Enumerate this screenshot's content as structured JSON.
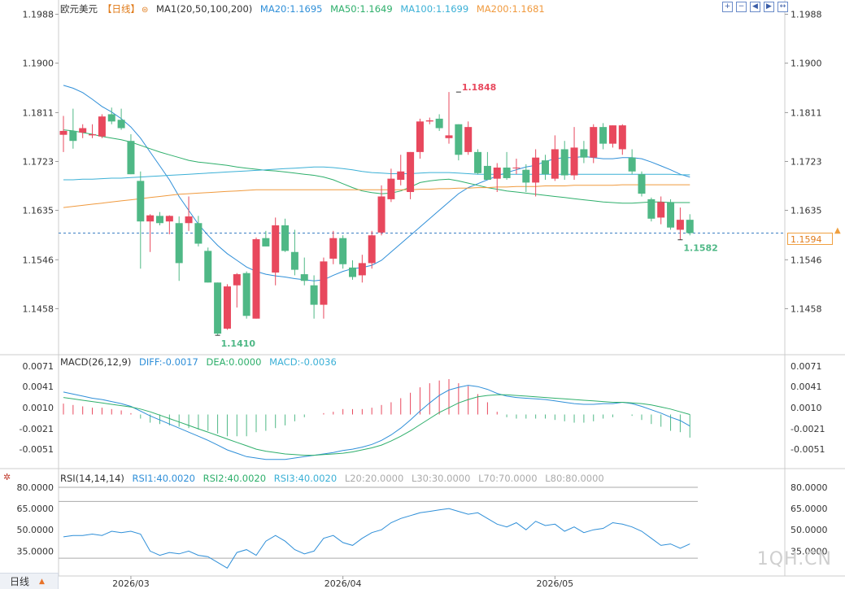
{
  "symbol": "欧元美元",
  "period_tag": "【日线】",
  "ma_legend": {
    "name": "MA1(20,50,100,200)",
    "items": [
      {
        "label": "MA20:1.1695",
        "color": "#2f8fd8"
      },
      {
        "label": "MA50:1.1649",
        "color": "#2eaf6b"
      },
      {
        "label": "MA100:1.1699",
        "color": "#3bb0d6"
      },
      {
        "label": "MA200:1.1681",
        "color": "#f09a3e"
      }
    ]
  },
  "macd_legend": {
    "name": "MACD(26,12,9)",
    "items": [
      {
        "label": "DIFF:-0.0017",
        "color": "#2f8fd8"
      },
      {
        "label": "DEA:0.0000",
        "color": "#2eaf6b"
      },
      {
        "label": "MACD:-0.0036",
        "color": "#3bb0d6"
      }
    ]
  },
  "rsi_legend": {
    "name": "RSI(14,14,14)",
    "items": [
      {
        "label": "RSI1:40.0020",
        "color": "#2f8fd8"
      },
      {
        "label": "RSI2:40.0020",
        "color": "#2eaf6b"
      },
      {
        "label": "RSI3:40.0020",
        "color": "#3bb0d6"
      },
      {
        "label": "L20:20.0000",
        "color": "#aaaaaa"
      },
      {
        "label": "L30:30.0000",
        "color": "#aaaaaa"
      },
      {
        "label": "L70:70.0000",
        "color": "#aaaaaa"
      },
      {
        "label": "L80:80.0000",
        "color": "#aaaaaa"
      }
    ]
  },
  "toolbar_icons": [
    "zoom-in-icon",
    "zoom-out-icon",
    "move-left-icon",
    "move-right-icon",
    "reset-icon"
  ],
  "toolbar_glyphs": [
    "+",
    "−",
    "◀",
    "▶",
    "↔"
  ],
  "period_button": "日线",
  "watermark": "1QH.CN",
  "current_price": "1.1594",
  "colors": {
    "up": "#e8485d",
    "down": "#4fb886",
    "grid": "#e6e6e6"
  },
  "chart_data": {
    "type": "candlestick",
    "x_labels": [
      {
        "index": 7,
        "text": "2026/03"
      },
      {
        "index": 29,
        "text": "2026/04"
      },
      {
        "index": 51,
        "text": "2026/05"
      }
    ],
    "price_axis": {
      "ticks": [
        "1.1988",
        "1.1900",
        "1.1811",
        "1.1723",
        "1.1635",
        "1.1546",
        "1.1458"
      ],
      "ylim": [
        1.1378,
        1.2002
      ]
    },
    "annotations": [
      {
        "text": "1.1848",
        "index": 41,
        "value": 1.1848,
        "type": "high"
      },
      {
        "text": "1.1410",
        "index": 16,
        "value": 1.141,
        "type": "low"
      },
      {
        "text": "1.1582",
        "index": 64,
        "value": 1.1582,
        "type": "low"
      }
    ],
    "last_price_line": 1.1594,
    "candles": [
      {
        "o": 1.1771,
        "h": 1.1805,
        "l": 1.174,
        "c": 1.1778
      },
      {
        "o": 1.1778,
        "h": 1.1818,
        "l": 1.1746,
        "c": 1.176
      },
      {
        "o": 1.1775,
        "h": 1.179,
        "l": 1.1765,
        "c": 1.1783
      },
      {
        "o": 1.177,
        "h": 1.179,
        "l": 1.1765,
        "c": 1.1772
      },
      {
        "o": 1.1768,
        "h": 1.1808,
        "l": 1.1765,
        "c": 1.1804
      },
      {
        "o": 1.1808,
        "h": 1.182,
        "l": 1.179,
        "c": 1.1795
      },
      {
        "o": 1.1798,
        "h": 1.1818,
        "l": 1.178,
        "c": 1.1783
      },
      {
        "o": 1.176,
        "h": 1.1772,
        "l": 1.17,
        "c": 1.17
      },
      {
        "o": 1.1688,
        "h": 1.1705,
        "l": 1.153,
        "c": 1.1615
      },
      {
        "o": 1.1615,
        "h": 1.1628,
        "l": 1.156,
        "c": 1.1626
      },
      {
        "o": 1.1625,
        "h": 1.1632,
        "l": 1.1608,
        "c": 1.1612
      },
      {
        "o": 1.1615,
        "h": 1.1626,
        "l": 1.1592,
        "c": 1.1625
      },
      {
        "o": 1.1612,
        "h": 1.1624,
        "l": 1.1508,
        "c": 1.154
      },
      {
        "o": 1.1612,
        "h": 1.166,
        "l": 1.1598,
        "c": 1.1624
      },
      {
        "o": 1.1612,
        "h": 1.1625,
        "l": 1.157,
        "c": 1.1575
      },
      {
        "o": 1.1562,
        "h": 1.1568,
        "l": 1.1505,
        "c": 1.1505
      },
      {
        "o": 1.1505,
        "h": 1.1505,
        "l": 1.141,
        "c": 1.1413
      },
      {
        "o": 1.1422,
        "h": 1.1502,
        "l": 1.142,
        "c": 1.1498
      },
      {
        "o": 1.15,
        "h": 1.1522,
        "l": 1.146,
        "c": 1.152
      },
      {
        "o": 1.1522,
        "h": 1.1525,
        "l": 1.144,
        "c": 1.1445
      },
      {
        "o": 1.144,
        "h": 1.1586,
        "l": 1.144,
        "c": 1.1583
      },
      {
        "o": 1.1585,
        "h": 1.1598,
        "l": 1.157,
        "c": 1.157
      },
      {
        "o": 1.1523,
        "h": 1.1622,
        "l": 1.15,
        "c": 1.1608
      },
      {
        "o": 1.1608,
        "h": 1.162,
        "l": 1.156,
        "c": 1.1562
      },
      {
        "o": 1.156,
        "h": 1.16,
        "l": 1.1518,
        "c": 1.1528
      },
      {
        "o": 1.152,
        "h": 1.155,
        "l": 1.15,
        "c": 1.1508
      },
      {
        "o": 1.15,
        "h": 1.1518,
        "l": 1.144,
        "c": 1.1465
      },
      {
        "o": 1.1465,
        "h": 1.155,
        "l": 1.144,
        "c": 1.1543
      },
      {
        "o": 1.1548,
        "h": 1.1598,
        "l": 1.1538,
        "c": 1.1585
      },
      {
        "o": 1.1585,
        "h": 1.159,
        "l": 1.153,
        "c": 1.1538
      },
      {
        "o": 1.1532,
        "h": 1.1545,
        "l": 1.151,
        "c": 1.1515
      },
      {
        "o": 1.1518,
        "h": 1.1555,
        "l": 1.1505,
        "c": 1.154
      },
      {
        "o": 1.154,
        "h": 1.1598,
        "l": 1.153,
        "c": 1.159
      },
      {
        "o": 1.1595,
        "h": 1.168,
        "l": 1.159,
        "c": 1.166
      },
      {
        "o": 1.1655,
        "h": 1.171,
        "l": 1.165,
        "c": 1.1692
      },
      {
        "o": 1.169,
        "h": 1.1735,
        "l": 1.168,
        "c": 1.1705
      },
      {
        "o": 1.1668,
        "h": 1.174,
        "l": 1.1655,
        "c": 1.174
      },
      {
        "o": 1.174,
        "h": 1.18,
        "l": 1.1728,
        "c": 1.1795
      },
      {
        "o": 1.1795,
        "h": 1.1802,
        "l": 1.179,
        "c": 1.1797
      },
      {
        "o": 1.18,
        "h": 1.1808,
        "l": 1.1778,
        "c": 1.1783
      },
      {
        "o": 1.1765,
        "h": 1.1848,
        "l": 1.1755,
        "c": 1.177
      },
      {
        "o": 1.179,
        "h": 1.179,
        "l": 1.1725,
        "c": 1.1735
      },
      {
        "o": 1.174,
        "h": 1.1795,
        "l": 1.1735,
        "c": 1.1785
      },
      {
        "o": 1.174,
        "h": 1.1745,
        "l": 1.17,
        "c": 1.1702
      },
      {
        "o": 1.1715,
        "h": 1.174,
        "l": 1.169,
        "c": 1.169
      },
      {
        "o": 1.1692,
        "h": 1.172,
        "l": 1.1668,
        "c": 1.1712
      },
      {
        "o": 1.1712,
        "h": 1.174,
        "l": 1.169,
        "c": 1.1693
      },
      {
        "o": 1.1712,
        "h": 1.1728,
        "l": 1.17,
        "c": 1.1712
      },
      {
        "o": 1.1708,
        "h": 1.1718,
        "l": 1.1668,
        "c": 1.1685
      },
      {
        "o": 1.1685,
        "h": 1.1745,
        "l": 1.166,
        "c": 1.173
      },
      {
        "o": 1.1725,
        "h": 1.1735,
        "l": 1.169,
        "c": 1.17
      },
      {
        "o": 1.1692,
        "h": 1.177,
        "l": 1.1688,
        "c": 1.1745
      },
      {
        "o": 1.1745,
        "h": 1.176,
        "l": 1.169,
        "c": 1.1698
      },
      {
        "o": 1.1698,
        "h": 1.1785,
        "l": 1.169,
        "c": 1.1748
      },
      {
        "o": 1.1745,
        "h": 1.176,
        "l": 1.172,
        "c": 1.173
      },
      {
        "o": 1.173,
        "h": 1.179,
        "l": 1.172,
        "c": 1.1785
      },
      {
        "o": 1.1785,
        "h": 1.1792,
        "l": 1.1745,
        "c": 1.1755
      },
      {
        "o": 1.1755,
        "h": 1.1788,
        "l": 1.1748,
        "c": 1.1788
      },
      {
        "o": 1.1745,
        "h": 1.179,
        "l": 1.1735,
        "c": 1.1788
      },
      {
        "o": 1.173,
        "h": 1.1745,
        "l": 1.17,
        "c": 1.1705
      },
      {
        "o": 1.17,
        "h": 1.1705,
        "l": 1.166,
        "c": 1.1665
      },
      {
        "o": 1.1655,
        "h": 1.1658,
        "l": 1.1615,
        "c": 1.162
      },
      {
        "o": 1.1622,
        "h": 1.166,
        "l": 1.161,
        "c": 1.165
      },
      {
        "o": 1.165,
        "h": 1.1655,
        "l": 1.16,
        "c": 1.1604
      },
      {
        "o": 1.16,
        "h": 1.164,
        "l": 1.1582,
        "c": 1.1618
      },
      {
        "o": 1.1618,
        "h": 1.1628,
        "l": 1.159,
        "c": 1.1594
      }
    ],
    "ma_lines": {
      "MA20": [
        1.186,
        1.1855,
        1.1847,
        1.1835,
        1.1822,
        1.1812,
        1.18,
        1.1785,
        1.1765,
        1.174,
        1.1715,
        1.169,
        1.166,
        1.1635,
        1.161,
        1.159,
        1.1572,
        1.1557,
        1.1545,
        1.1533,
        1.1525,
        1.152,
        1.1517,
        1.1515,
        1.1512,
        1.151,
        1.1508,
        1.151,
        1.1518,
        1.1525,
        1.153,
        1.1532,
        1.1536,
        1.1545,
        1.156,
        1.1575,
        1.159,
        1.1605,
        1.162,
        1.1635,
        1.165,
        1.1665,
        1.1676,
        1.1683,
        1.169,
        1.1697,
        1.1703,
        1.1708,
        1.1713,
        1.1716,
        1.1723,
        1.1728,
        1.173,
        1.173,
        1.1732,
        1.173,
        1.1728,
        1.1728,
        1.173,
        1.173,
        1.1728,
        1.1722,
        1.1715,
        1.1708,
        1.17,
        1.1695
      ],
      "MA50": [
        1.178,
        1.1778,
        1.1775,
        1.1772,
        1.1768,
        1.1765,
        1.1762,
        1.1758,
        1.1752,
        1.1746,
        1.174,
        1.1735,
        1.173,
        1.1725,
        1.1722,
        1.172,
        1.1718,
        1.1716,
        1.1713,
        1.1711,
        1.1709,
        1.1707,
        1.1706,
        1.1704,
        1.1702,
        1.17,
        1.1698,
        1.1695,
        1.169,
        1.1683,
        1.1676,
        1.167,
        1.1667,
        1.1665,
        1.1666,
        1.167,
        1.1677,
        1.1685,
        1.1688,
        1.169,
        1.1691,
        1.1688,
        1.1684,
        1.168,
        1.1676,
        1.1673,
        1.167,
        1.1668,
        1.1666,
        1.1664,
        1.1662,
        1.166,
        1.1658,
        1.1656,
        1.1654,
        1.1652,
        1.165,
        1.1649,
        1.1648,
        1.1648,
        1.1649,
        1.165,
        1.165,
        1.1649,
        1.1649,
        1.1649
      ],
      "MA100": [
        1.169,
        1.169,
        1.1691,
        1.1691,
        1.1692,
        1.1693,
        1.1693,
        1.1694,
        1.1695,
        1.1696,
        1.1697,
        1.1698,
        1.1699,
        1.17,
        1.1701,
        1.1702,
        1.1703,
        1.1704,
        1.1705,
        1.1706,
        1.1707,
        1.1708,
        1.1709,
        1.171,
        1.1711,
        1.1712,
        1.1713,
        1.1713,
        1.1712,
        1.171,
        1.1708,
        1.1705,
        1.1703,
        1.1702,
        1.1701,
        1.1701,
        1.1701,
        1.1702,
        1.1703,
        1.1703,
        1.1703,
        1.1702,
        1.1701,
        1.17,
        1.17,
        1.17,
        1.17,
        1.17,
        1.17,
        1.17,
        1.17,
        1.17,
        1.17,
        1.17,
        1.17,
        1.17,
        1.17,
        1.17,
        1.17,
        1.17,
        1.17,
        1.17,
        1.17,
        1.17,
        1.1699,
        1.1699
      ],
      "MA200": [
        1.164,
        1.1642,
        1.1644,
        1.1646,
        1.1648,
        1.165,
        1.1652,
        1.1654,
        1.1656,
        1.1658,
        1.166,
        1.1662,
        1.1664,
        1.1665,
        1.1666,
        1.1667,
        1.1668,
        1.1669,
        1.167,
        1.1671,
        1.1672,
        1.1672,
        1.1672,
        1.1672,
        1.1672,
        1.1672,
        1.1672,
        1.1672,
        1.1672,
        1.1672,
        1.1672,
        1.1672,
        1.1672,
        1.1672,
        1.1672,
        1.1672,
        1.1672,
        1.1673,
        1.1673,
        1.1674,
        1.1674,
        1.1675,
        1.1675,
        1.1676,
        1.1676,
        1.1677,
        1.1677,
        1.1678,
        1.1678,
        1.1678,
        1.1679,
        1.1679,
        1.1679,
        1.168,
        1.168,
        1.168,
        1.168,
        1.168,
        1.1681,
        1.1681,
        1.1681,
        1.1681,
        1.1681,
        1.1681,
        1.1681,
        1.1681
      ]
    },
    "macd": {
      "axis_ticks": [
        "0.0071",
        "0.0041",
        "0.0010",
        "-0.0021",
        "-0.0051"
      ],
      "ylim": [
        -0.007,
        0.0076
      ],
      "diff": [
        0.0033,
        0.003,
        0.0027,
        0.0024,
        0.0022,
        0.0019,
        0.0016,
        0.0012,
        0.0005,
        -0.0002,
        -0.0008,
        -0.0014,
        -0.002,
        -0.0026,
        -0.0032,
        -0.0038,
        -0.0045,
        -0.0052,
        -0.0057,
        -0.0062,
        -0.0064,
        -0.0066,
        -0.0066,
        -0.0066,
        -0.0064,
        -0.0062,
        -0.006,
        -0.0058,
        -0.0056,
        -0.0053,
        -0.0051,
        -0.0048,
        -0.0044,
        -0.0038,
        -0.003,
        -0.002,
        -0.0008,
        0.0005,
        0.0017,
        0.0028,
        0.0036,
        0.004,
        0.0043,
        0.0041,
        0.0037,
        0.0031,
        0.0027,
        0.0025,
        0.0024,
        0.0023,
        0.0022,
        0.002,
        0.0018,
        0.0016,
        0.0015,
        0.0015,
        0.0016,
        0.0016,
        0.0018,
        0.0016,
        0.0012,
        0.0007,
        0.0002,
        -0.0004,
        -0.0009,
        -0.0017
      ],
      "dea": [
        0.0025,
        0.0023,
        0.0021,
        0.0019,
        0.0017,
        0.0015,
        0.0013,
        0.0011,
        0.0008,
        0.0004,
        -0.0001,
        -0.0006,
        -0.0011,
        -0.0016,
        -0.0021,
        -0.0026,
        -0.0031,
        -0.0036,
        -0.0041,
        -0.0046,
        -0.0051,
        -0.0054,
        -0.0056,
        -0.0058,
        -0.0059,
        -0.006,
        -0.006,
        -0.0059,
        -0.0058,
        -0.0057,
        -0.0055,
        -0.0052,
        -0.0049,
        -0.0045,
        -0.0039,
        -0.0032,
        -0.0024,
        -0.0015,
        -0.0006,
        0.0003,
        0.001,
        0.0017,
        0.0022,
        0.0026,
        0.0028,
        0.0029,
        0.0029,
        0.0028,
        0.0027,
        0.0026,
        0.0025,
        0.0024,
        0.0023,
        0.0022,
        0.0021,
        0.002,
        0.0019,
        0.0018,
        0.0018,
        0.0017,
        0.0016,
        0.0014,
        0.0011,
        0.0008,
        0.0004,
        0.0
      ]
    },
    "rsi": {
      "axis_ticks": [
        "80.0000",
        "65.0000",
        "50.0000",
        "35.0000"
      ],
      "ylim": [
        22,
        84
      ],
      "levels": [
        80,
        70,
        30
      ],
      "values": [
        45,
        46,
        46,
        47,
        46,
        49,
        48,
        49,
        47,
        35,
        32,
        34,
        33,
        35,
        32,
        31,
        27,
        23,
        34,
        36,
        32,
        42,
        46,
        42,
        36,
        33,
        35,
        44,
        46,
        41,
        39,
        44,
        48,
        50,
        55,
        58,
        60,
        62,
        63,
        64,
        65,
        63,
        61,
        62,
        58,
        54,
        52,
        55,
        50,
        56,
        53,
        54,
        49,
        52,
        48,
        50,
        51,
        55,
        54,
        52,
        49,
        44,
        39,
        40,
        37,
        40
      ]
    }
  }
}
